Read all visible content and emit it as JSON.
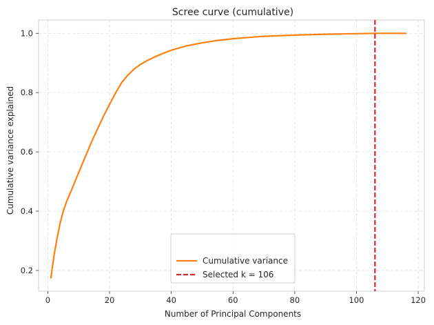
{
  "chart_data": {
    "type": "line",
    "title": "Scree curve (cumulative)",
    "xlabel": "Number of Principal Components",
    "ylabel": "Cumulative variance explained",
    "xlim": [
      -3,
      122
    ],
    "ylim": [
      0.13,
      1.045
    ],
    "xticks": [
      0,
      20,
      40,
      60,
      80,
      100,
      120
    ],
    "yticks": [
      0.2,
      0.4,
      0.6,
      0.8,
      1.0
    ],
    "ytick_labels": [
      "0.2",
      "0.4",
      "0.6",
      "0.8",
      "1.0"
    ],
    "grid": true,
    "legend_position": "bottom-center",
    "series": [
      {
        "name": "Cumulative variance",
        "color": "#ff7f0e",
        "style": "solid",
        "x": [
          1,
          2,
          3,
          4,
          5,
          6,
          8,
          10,
          12,
          14,
          16,
          18,
          20,
          22,
          24,
          26,
          28,
          30,
          32,
          35,
          38,
          40,
          45,
          50,
          55,
          60,
          65,
          70,
          80,
          90,
          100,
          106,
          110,
          116
        ],
        "y": [
          0.175,
          0.25,
          0.31,
          0.36,
          0.4,
          0.43,
          0.48,
          0.53,
          0.58,
          0.63,
          0.675,
          0.72,
          0.76,
          0.8,
          0.835,
          0.86,
          0.88,
          0.895,
          0.907,
          0.922,
          0.935,
          0.943,
          0.958,
          0.968,
          0.976,
          0.982,
          0.986,
          0.99,
          0.994,
          0.997,
          0.999,
          1.0,
          1.0,
          1.0
        ]
      }
    ],
    "vline": {
      "name": "Selected k = 106",
      "x": 106,
      "color": "#d62728",
      "style": "dashed"
    }
  }
}
